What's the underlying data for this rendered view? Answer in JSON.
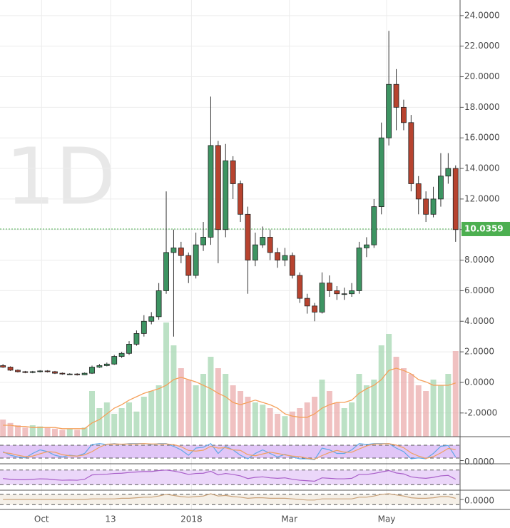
{
  "chart_data": {
    "type": "candlestick",
    "watermark": "1D",
    "categories": [
      null,
      null,
      null,
      null,
      null,
      null,
      null,
      null,
      null,
      null,
      null,
      null,
      null,
      null,
      null,
      null,
      null,
      null,
      null,
      null,
      null,
      null,
      null,
      null,
      null,
      null,
      null,
      null,
      null,
      null,
      null,
      null,
      null,
      null,
      null,
      null,
      null,
      null,
      null,
      null,
      null,
      null,
      null,
      null,
      null,
      null,
      null,
      null,
      null,
      null,
      null,
      null,
      null,
      null,
      null,
      null,
      null,
      null,
      null,
      null,
      null,
      null
    ],
    "open": [
      1.1,
      1.0,
      0.8,
      0.7,
      0.65,
      0.7,
      0.75,
      0.7,
      0.6,
      0.55,
      0.55,
      0.5,
      0.6,
      1.0,
      1.1,
      1.2,
      1.7,
      1.9,
      2.5,
      3.2,
      4.0,
      4.3,
      6.0,
      8.5,
      8.8,
      8.3,
      7.0,
      9.0,
      9.5,
      15.5,
      10.0,
      14.5,
      13.0,
      11.0,
      8.0,
      9.0,
      9.5,
      8.5,
      8.0,
      8.3,
      7.0,
      5.5,
      5.0,
      4.6,
      6.5,
      6.0,
      5.8,
      5.8,
      6.0,
      8.8,
      9.0,
      11.5,
      16.0,
      19.5,
      18.0,
      17.0,
      13.0,
      12.0,
      11.0,
      12.0,
      13.5,
      14.0
    ],
    "high": [
      1.2,
      1.05,
      0.85,
      0.75,
      0.75,
      0.8,
      0.8,
      0.75,
      0.65,
      0.6,
      0.6,
      0.65,
      1.1,
      1.2,
      1.3,
      1.8,
      2.0,
      2.7,
      3.4,
      4.4,
      4.6,
      6.5,
      12.5,
      10.0,
      9.2,
      8.5,
      9.8,
      10.5,
      18.7,
      15.8,
      15.6,
      14.8,
      13.2,
      11.5,
      9.8,
      10.2,
      10.0,
      8.8,
      8.8,
      8.5,
      7.2,
      5.8,
      5.2,
      7.2,
      7.0,
      6.3,
      6.2,
      6.5,
      9.2,
      9.5,
      12.0,
      17.0,
      23.0,
      20.5,
      18.5,
      17.5,
      13.5,
      12.5,
      12.8,
      15.0,
      15.0,
      14.2
    ],
    "low": [
      0.95,
      0.75,
      0.65,
      0.6,
      0.6,
      0.65,
      0.65,
      0.55,
      0.5,
      0.5,
      0.45,
      0.48,
      0.55,
      0.95,
      1.05,
      1.15,
      1.6,
      1.8,
      2.4,
      3.0,
      3.8,
      4.1,
      5.8,
      3.0,
      7.8,
      6.5,
      6.8,
      8.6,
      9.0,
      7.8,
      9.5,
      12.0,
      10.5,
      5.8,
      7.6,
      8.8,
      8.0,
      7.5,
      7.6,
      6.8,
      5.2,
      4.5,
      4.0,
      4.5,
      5.6,
      5.4,
      5.4,
      5.6,
      5.8,
      8.2,
      8.8,
      11.0,
      15.5,
      16.5,
      16.5,
      12.5,
      11.0,
      10.5,
      10.8,
      11.5,
      13.0,
      9.2
    ],
    "close": [
      1.0,
      0.8,
      0.7,
      0.65,
      0.7,
      0.75,
      0.7,
      0.6,
      0.55,
      0.55,
      0.5,
      0.6,
      1.0,
      1.1,
      1.2,
      1.7,
      1.9,
      2.5,
      3.2,
      4.0,
      4.3,
      6.0,
      8.5,
      8.8,
      8.3,
      7.0,
      9.0,
      9.5,
      15.5,
      10.0,
      14.5,
      13.0,
      11.0,
      8.0,
      9.0,
      9.5,
      8.5,
      8.0,
      8.3,
      7.0,
      5.5,
      5.0,
      4.6,
      6.5,
      6.0,
      5.8,
      5.8,
      6.0,
      8.8,
      9.0,
      11.5,
      16.0,
      19.5,
      18.0,
      17.0,
      13.0,
      12.0,
      11.0,
      12.0,
      13.5,
      14.0,
      10.0
    ],
    "up_color": "#3d9462",
    "down_color": "#b7432f",
    "xlim": [
      -0.4,
      61.6
    ],
    "xticks": [
      {
        "value": 5.2,
        "label": "Oct"
      },
      {
        "value": 14.5,
        "label": "13"
      },
      {
        "value": 25.4,
        "label": "2018"
      },
      {
        "value": 38.6,
        "label": "Mar"
      },
      {
        "value": 51.7,
        "label": "May"
      }
    ],
    "ylim": [
      -3.55,
      25.02
    ],
    "yticks": [
      {
        "value": 24,
        "label": "24.0000"
      },
      {
        "value": 22,
        "label": "22.0000"
      },
      {
        "value": 20,
        "label": "20.0000"
      },
      {
        "value": 18,
        "label": "18.0000"
      },
      {
        "value": 16,
        "label": "16.0000"
      },
      {
        "value": 14,
        "label": "14.0000"
      },
      {
        "value": 12,
        "label": "12.0000"
      },
      {
        "value": 10,
        "label": "10.0000"
      },
      {
        "value": 8,
        "label": "8.0000"
      },
      {
        "value": 6,
        "label": "6.0000"
      },
      {
        "value": 4,
        "label": "4.0000"
      },
      {
        "value": 2,
        "label": "2.0000"
      },
      {
        "value": 0,
        "label": "0.0000"
      },
      {
        "value": -2,
        "label": "-2.0000"
      }
    ],
    "grid": true,
    "last_price": 10.0359,
    "last_price_color": "#4caf50",
    "volume": {
      "up_color": "#9fd4ac",
      "down_color": "#eaa6a6",
      "values": [
        15,
        12,
        10,
        8,
        10,
        9,
        8,
        7,
        6,
        7,
        6,
        8,
        40,
        25,
        30,
        20,
        25,
        30,
        22,
        35,
        40,
        45,
        100,
        80,
        60,
        50,
        45,
        55,
        70,
        60,
        55,
        45,
        40,
        35,
        30,
        28,
        25,
        20,
        18,
        22,
        25,
        30,
        35,
        50,
        40,
        30,
        25,
        30,
        55,
        45,
        50,
        80,
        90,
        70,
        60,
        55,
        45,
        40,
        50,
        45,
        55,
        75
      ],
      "ma_color": "#f5a05a",
      "ma": [
        10,
        10,
        9,
        9,
        8,
        8,
        8,
        8,
        7,
        7,
        7,
        7,
        12,
        15,
        20,
        25,
        28,
        32,
        35,
        38,
        40,
        42,
        45,
        50,
        52,
        50,
        48,
        45,
        42,
        38,
        35,
        30,
        28,
        30,
        32,
        30,
        28,
        25,
        20,
        18,
        17,
        17,
        20,
        25,
        28,
        30,
        30,
        32,
        38,
        42,
        45,
        50,
        58,
        60,
        58,
        55,
        50,
        48,
        45,
        45,
        45,
        47
      ]
    },
    "panels": [
      {
        "type": "line",
        "ylim": [
          -10,
          110
        ],
        "yticks": [
          {
            "value": 0,
            "label": "0.0000"
          }
        ],
        "band_color": "#d9b8f5",
        "series": [
          {
            "color": "#5fa8e8",
            "values": [
              50,
              30,
              20,
              15,
              40,
              60,
              50,
              30,
              20,
              30,
              25,
              40,
              90,
              95,
              90,
              95,
              90,
              95,
              95,
              95,
              90,
              95,
              95,
              80,
              60,
              30,
              70,
              75,
              95,
              40,
              80,
              60,
              30,
              10,
              40,
              60,
              40,
              20,
              35,
              20,
              10,
              10,
              5,
              70,
              60,
              40,
              40,
              60,
              95,
              90,
              95,
              95,
              95,
              70,
              50,
              10,
              15,
              10,
              40,
              80,
              85,
              20
            ]
          },
          {
            "color": "#f0a060",
            "values": [
              45,
              40,
              30,
              22,
              25,
              38,
              50,
              47,
              33,
              27,
              25,
              32,
              50,
              75,
              92,
              93,
              92,
              93,
              93,
              95,
              93,
              93,
              93,
              90,
              78,
              57,
              53,
              58,
              80,
              70,
              72,
              60,
              57,
              33,
              27,
              37,
              47,
              40,
              32,
              25,
              22,
              13,
              8,
              28,
              45,
              57,
              47,
              47,
              65,
              82,
              93,
              93,
              95,
              87,
              72,
              43,
              25,
              12,
              22,
              43,
              68,
              62
            ]
          }
        ]
      },
      {
        "type": "line",
        "ylim": [
          0,
          100
        ],
        "yticks": [],
        "band_color": "#e6cdf7",
        "series": [
          {
            "color": "#a95fc9",
            "values": [
              45,
              42,
              40,
              40,
              42,
              44,
              43,
              40,
              38,
              39,
              38,
              42,
              60,
              62,
              63,
              66,
              67,
              70,
              72,
              74,
              74,
              78,
              80,
              76,
              70,
              62,
              66,
              67,
              75,
              60,
              66,
              62,
              56,
              45,
              50,
              52,
              48,
              46,
              48,
              42,
              38,
              36,
              34,
              48,
              46,
              44,
              44,
              46,
              62,
              62,
              66,
              72,
              78,
              68,
              64,
              52,
              48,
              46,
              50,
              56,
              58,
              42
            ]
          }
        ]
      },
      {
        "type": "line",
        "ylim": [
          -1.5,
          1.5
        ],
        "yticks": [
          {
            "value": 0,
            "label": "0.0000"
          }
        ],
        "band_color": "#f3ece2",
        "series": [
          {
            "color": "#c9a27a",
            "values": [
              0,
              0,
              0,
              0,
              0,
              0,
              0,
              0,
              0,
              0,
              0,
              0,
              0.1,
              0.1,
              0.1,
              0.1,
              0.2,
              0.2,
              0.3,
              0.4,
              0.4,
              0.6,
              0.9,
              0.7,
              0.5,
              0.4,
              0.5,
              0.6,
              1.0,
              0.6,
              0.7,
              0.5,
              0.4,
              0.2,
              0.3,
              0.3,
              0.2,
              0.2,
              0.2,
              0.1,
              0,
              -0.1,
              -0.1,
              0.1,
              0.1,
              0.1,
              0.1,
              0.1,
              0.4,
              0.4,
              0.6,
              0.9,
              1.0,
              0.8,
              0.6,
              0.3,
              0.2,
              0.2,
              0.3,
              0.5,
              0.5,
              0.2
            ]
          }
        ]
      }
    ]
  }
}
